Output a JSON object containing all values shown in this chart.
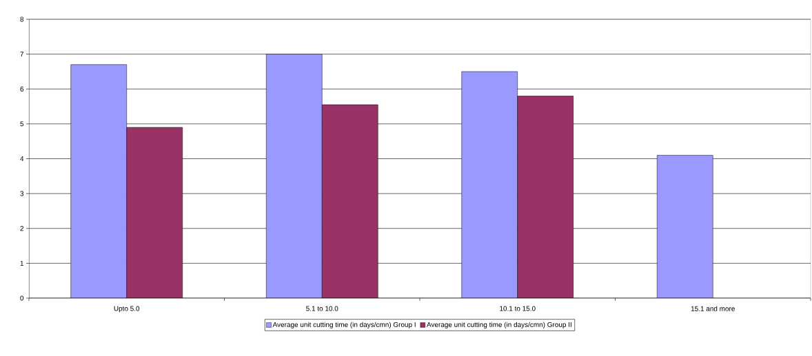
{
  "chart_data": {
    "type": "bar",
    "categories": [
      "Upto 5.0",
      "5.1 to 10.0",
      "10.1 to 15.0",
      "15.1 and more"
    ],
    "series": [
      {
        "name": "Average unit cutting time (in days/cmn) Group I",
        "color": "#9999ff",
        "values": [
          6.7,
          7.0,
          6.5,
          4.1
        ]
      },
      {
        "name": "Average unit cutting time (in days/cmn) Group II",
        "color": "#993366",
        "values": [
          4.9,
          5.55,
          5.8,
          null
        ]
      }
    ],
    "ylim": [
      0,
      8
    ],
    "yticks": [
      0,
      1,
      2,
      3,
      4,
      5,
      6,
      7,
      8
    ],
    "grid": "y",
    "legend": "bottom"
  }
}
